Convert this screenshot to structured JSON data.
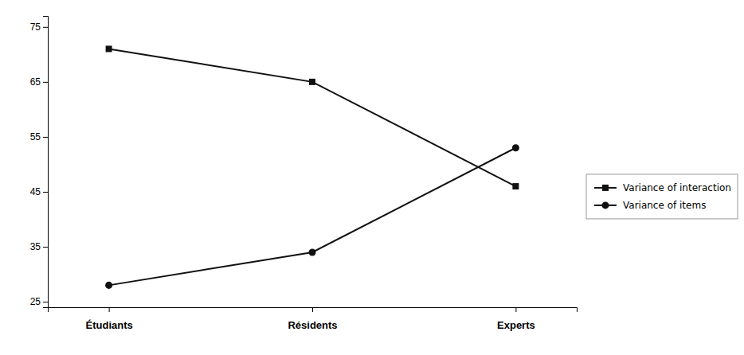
{
  "chart_data": {
    "type": "line",
    "categories": [
      "Étudiants",
      "Résidents",
      "Experts"
    ],
    "series": [
      {
        "name": "Variance of interaction",
        "color": "#111111",
        "marker": "square",
        "values": [
          71,
          65,
          46
        ]
      },
      {
        "name": "Variance of items",
        "color": "#111111",
        "marker": "circle",
        "values": [
          28,
          34,
          53
        ]
      }
    ],
    "ylim": [
      24,
      77
    ],
    "yticks": [
      25,
      35,
      45,
      55,
      65,
      75
    ],
    "grid": false,
    "legend": "right"
  }
}
